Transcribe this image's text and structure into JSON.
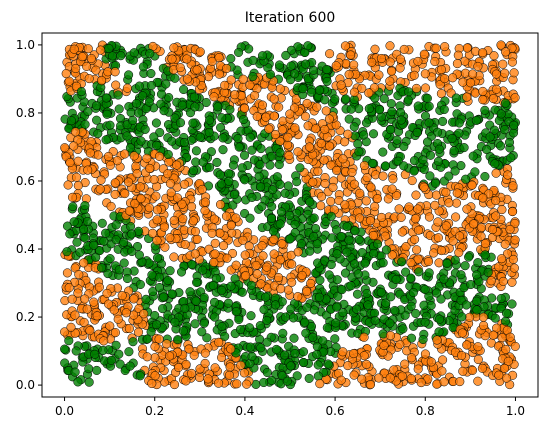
{
  "chart_data": {
    "type": "scatter",
    "title": "Iteration 600",
    "xlabel": "",
    "ylabel": "",
    "xlim": [
      -0.05,
      1.05
    ],
    "ylim": [
      -0.035,
      1.035
    ],
    "xticks": [
      0.0,
      0.2,
      0.4,
      0.6,
      0.8,
      1.0
    ],
    "xtick_labels": [
      "0.0",
      "0.2",
      "0.4",
      "0.6",
      "0.8",
      "1.0"
    ],
    "yticks": [
      0.0,
      0.2,
      0.4,
      0.6,
      0.8,
      1.0
    ],
    "ytick_labels": [
      "0.0",
      "0.2",
      "0.4",
      "0.6",
      "0.8",
      "1.0"
    ],
    "grid": false,
    "legend": "none",
    "colors": {
      "group_a": "#ff7f0e",
      "group_b": "#008000",
      "edge": "#000000"
    },
    "points_per_group_approx": 2500,
    "regions_description_note": "",
    "series": [
      {
        "color_key": "group_a",
        "points": [
          [
            0.02,
            0.98
          ],
          [
            0.05,
            0.95
          ],
          [
            0.08,
            0.97
          ],
          [
            0.11,
            0.9
          ],
          [
            0.03,
            0.91
          ],
          [
            0.28,
            0.97
          ],
          [
            0.31,
            0.94
          ],
          [
            0.34,
            0.9
          ],
          [
            0.42,
            0.86
          ],
          [
            0.46,
            0.83
          ],
          [
            0.5,
            0.8
          ],
          [
            0.55,
            0.78
          ],
          [
            0.58,
            0.74
          ],
          [
            0.62,
            0.88
          ],
          [
            0.64,
            0.95
          ],
          [
            0.68,
            0.98
          ],
          [
            0.72,
            0.97
          ],
          [
            0.76,
            0.95
          ],
          [
            0.8,
            0.93
          ],
          [
            0.84,
            0.96
          ],
          [
            0.88,
            0.98
          ],
          [
            0.92,
            0.97
          ],
          [
            0.96,
            0.94
          ],
          [
            0.99,
            0.88
          ],
          [
            0.04,
            0.7
          ],
          [
            0.07,
            0.65
          ],
          [
            0.1,
            0.6
          ],
          [
            0.14,
            0.58
          ],
          [
            0.18,
            0.55
          ],
          [
            0.22,
            0.5
          ],
          [
            0.26,
            0.47
          ],
          [
            0.3,
            0.45
          ],
          [
            0.34,
            0.42
          ],
          [
            0.38,
            0.4
          ],
          [
            0.42,
            0.38
          ],
          [
            0.46,
            0.36
          ],
          [
            0.62,
            0.56
          ],
          [
            0.66,
            0.52
          ],
          [
            0.7,
            0.5
          ],
          [
            0.74,
            0.48
          ],
          [
            0.78,
            0.45
          ],
          [
            0.82,
            0.42
          ],
          [
            0.86,
            0.44
          ],
          [
            0.9,
            0.5
          ],
          [
            0.94,
            0.55
          ],
          [
            0.98,
            0.6
          ],
          [
            0.03,
            0.3
          ],
          [
            0.06,
            0.25
          ],
          [
            0.1,
            0.2
          ],
          [
            0.14,
            0.15
          ],
          [
            0.18,
            0.1
          ],
          [
            0.22,
            0.08
          ],
          [
            0.3,
            0.05
          ],
          [
            0.6,
            0.02
          ],
          [
            0.65,
            0.05
          ],
          [
            0.7,
            0.08
          ],
          [
            0.75,
            0.12
          ],
          [
            0.8,
            0.08
          ],
          [
            0.85,
            0.05
          ],
          [
            0.9,
            0.1
          ],
          [
            0.95,
            0.15
          ],
          [
            0.98,
            0.3
          ]
        ]
      },
      {
        "color_key": "group_b",
        "points": [
          [
            0.1,
            0.97
          ],
          [
            0.14,
            0.92
          ],
          [
            0.18,
            0.88
          ],
          [
            0.22,
            0.85
          ],
          [
            0.26,
            0.8
          ],
          [
            0.3,
            0.78
          ],
          [
            0.34,
            0.75
          ],
          [
            0.38,
            0.7
          ],
          [
            0.4,
            0.95
          ],
          [
            0.44,
            0.97
          ],
          [
            0.48,
            0.95
          ],
          [
            0.52,
            0.92
          ],
          [
            0.56,
            0.9
          ],
          [
            0.6,
            0.85
          ],
          [
            0.65,
            0.8
          ],
          [
            0.7,
            0.75
          ],
          [
            0.75,
            0.8
          ],
          [
            0.8,
            0.78
          ],
          [
            0.84,
            0.72
          ],
          [
            0.88,
            0.68
          ],
          [
            0.92,
            0.66
          ],
          [
            0.96,
            0.7
          ],
          [
            0.99,
            0.78
          ],
          [
            0.08,
            0.85
          ],
          [
            0.04,
            0.8
          ],
          [
            0.1,
            0.75
          ],
          [
            0.44,
            0.56
          ],
          [
            0.48,
            0.52
          ],
          [
            0.52,
            0.48
          ],
          [
            0.56,
            0.45
          ],
          [
            0.6,
            0.42
          ],
          [
            0.64,
            0.38
          ],
          [
            0.68,
            0.3
          ],
          [
            0.36,
            0.25
          ],
          [
            0.4,
            0.2
          ],
          [
            0.44,
            0.16
          ],
          [
            0.48,
            0.12
          ],
          [
            0.52,
            0.08
          ],
          [
            0.56,
            0.05
          ],
          [
            0.24,
            0.18
          ],
          [
            0.28,
            0.22
          ],
          [
            0.32,
            0.3
          ],
          [
            0.06,
            0.45
          ],
          [
            0.1,
            0.42
          ],
          [
            0.14,
            0.38
          ],
          [
            0.08,
            0.05
          ],
          [
            0.12,
            0.08
          ],
          [
            0.16,
            0.12
          ],
          [
            0.82,
            0.22
          ],
          [
            0.86,
            0.28
          ],
          [
            0.9,
            0.32
          ],
          [
            0.94,
            0.26
          ],
          [
            0.98,
            0.22
          ],
          [
            0.72,
            0.2
          ],
          [
            0.76,
            0.15
          ]
        ]
      }
    ]
  }
}
